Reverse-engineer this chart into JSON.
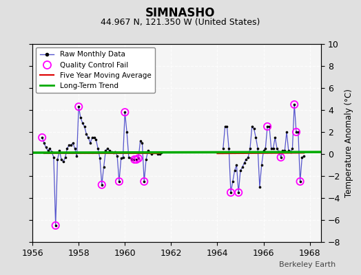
{
  "title": "SIMNASHO",
  "subtitle": "44.967 N, 121.350 W (United States)",
  "ylabel": "Temperature Anomaly (°C)",
  "credit": "Berkeley Earth",
  "xlim": [
    1956,
    1968.5
  ],
  "ylim": [
    -8,
    10
  ],
  "yticks": [
    -8,
    -6,
    -4,
    -2,
    0,
    2,
    4,
    6,
    8,
    10
  ],
  "xticks": [
    1956,
    1958,
    1960,
    1962,
    1964,
    1966,
    1968
  ],
  "bg_color": "#e0e0e0",
  "plot_bg": "#f5f5f5",
  "raw_color": "#5555cc",
  "marker_color": "#000000",
  "qc_fail_color": "#ff00ff",
  "moving_avg_color": "#dd0000",
  "trend_color": "#00aa00",
  "segment1": [
    [
      1956.417,
      1.5
    ],
    [
      1956.5,
      1.0
    ],
    [
      1956.583,
      0.6
    ],
    [
      1956.667,
      0.3
    ],
    [
      1956.75,
      0.5
    ],
    [
      1956.833,
      0.2
    ],
    [
      1956.917,
      -0.3
    ],
    [
      1957.0,
      -6.5
    ],
    [
      1957.083,
      -0.5
    ],
    [
      1957.167,
      0.3
    ],
    [
      1957.25,
      -0.5
    ],
    [
      1957.333,
      -0.7
    ],
    [
      1957.417,
      -0.3
    ],
    [
      1957.5,
      0.5
    ],
    [
      1957.583,
      0.8
    ],
    [
      1957.667,
      0.8
    ],
    [
      1957.75,
      1.0
    ],
    [
      1957.833,
      0.5
    ],
    [
      1957.917,
      -0.2
    ],
    [
      1958.0,
      4.3
    ],
    [
      1958.083,
      3.3
    ],
    [
      1958.167,
      2.8
    ],
    [
      1958.25,
      2.5
    ],
    [
      1958.333,
      1.8
    ],
    [
      1958.417,
      1.5
    ],
    [
      1958.5,
      1.0
    ],
    [
      1958.583,
      1.5
    ],
    [
      1958.667,
      1.5
    ],
    [
      1958.75,
      1.3
    ],
    [
      1958.833,
      0.5
    ],
    [
      1958.917,
      -0.4
    ],
    [
      1959.0,
      -2.8
    ],
    [
      1959.083,
      -1.2
    ],
    [
      1959.167,
      0.3
    ],
    [
      1959.25,
      0.5
    ],
    [
      1959.333,
      0.3
    ],
    [
      1959.417,
      0.2
    ],
    [
      1959.5,
      0.1
    ],
    [
      1959.583,
      0.2
    ],
    [
      1959.667,
      -0.2
    ],
    [
      1959.75,
      -2.5
    ],
    [
      1959.833,
      -0.4
    ],
    [
      1959.917,
      -0.3
    ],
    [
      1960.0,
      3.8
    ],
    [
      1960.083,
      2.0
    ],
    [
      1960.167,
      -0.3
    ],
    [
      1960.25,
      -0.4
    ],
    [
      1960.333,
      -0.5
    ],
    [
      1960.417,
      -0.5
    ],
    [
      1960.5,
      -0.5
    ],
    [
      1960.583,
      -0.4
    ],
    [
      1960.667,
      1.2
    ],
    [
      1960.75,
      1.0
    ],
    [
      1960.833,
      -2.5
    ],
    [
      1960.917,
      -0.5
    ],
    [
      1961.0,
      0.3
    ],
    [
      1961.083,
      0.1
    ],
    [
      1961.167,
      0.0
    ],
    [
      1961.25,
      0.1
    ],
    [
      1961.333,
      0.1
    ],
    [
      1961.417,
      0.0
    ],
    [
      1961.5,
      0.0
    ],
    [
      1961.583,
      0.1
    ]
  ],
  "segment2": [
    [
      1964.25,
      0.5
    ],
    [
      1964.333,
      2.5
    ],
    [
      1964.417,
      2.5
    ],
    [
      1964.5,
      0.5
    ],
    [
      1964.583,
      -3.5
    ],
    [
      1964.667,
      -2.5
    ],
    [
      1964.75,
      -1.5
    ],
    [
      1964.833,
      -1.0
    ],
    [
      1964.917,
      -3.5
    ],
    [
      1965.0,
      -1.5
    ],
    [
      1965.083,
      -1.2
    ],
    [
      1965.167,
      -0.8
    ],
    [
      1965.25,
      -0.5
    ],
    [
      1965.333,
      -0.3
    ],
    [
      1965.417,
      0.5
    ],
    [
      1965.5,
      2.5
    ],
    [
      1965.583,
      2.3
    ],
    [
      1965.667,
      1.5
    ],
    [
      1965.75,
      0.5
    ],
    [
      1965.833,
      -3.0
    ],
    [
      1965.917,
      -1.0
    ],
    [
      1966.0,
      0.3
    ],
    [
      1966.083,
      0.5
    ],
    [
      1966.167,
      2.5
    ],
    [
      1966.25,
      2.5
    ],
    [
      1966.333,
      0.5
    ],
    [
      1966.417,
      0.5
    ],
    [
      1966.5,
      1.5
    ],
    [
      1966.583,
      0.5
    ],
    [
      1966.667,
      0.2
    ],
    [
      1966.75,
      -0.3
    ],
    [
      1966.833,
      0.3
    ],
    [
      1966.917,
      0.3
    ],
    [
      1967.0,
      2.0
    ],
    [
      1967.083,
      0.3
    ],
    [
      1967.167,
      0.2
    ],
    [
      1967.25,
      0.5
    ],
    [
      1967.333,
      4.5
    ],
    [
      1967.417,
      2.0
    ],
    [
      1967.5,
      2.0
    ],
    [
      1967.583,
      -2.5
    ],
    [
      1967.667,
      -0.3
    ],
    [
      1967.75,
      -0.2
    ]
  ],
  "qc_fail_points": [
    [
      1956.417,
      1.5
    ],
    [
      1957.0,
      -6.5
    ],
    [
      1958.0,
      4.3
    ],
    [
      1959.0,
      -2.8
    ],
    [
      1959.75,
      -2.5
    ],
    [
      1960.0,
      3.8
    ],
    [
      1960.417,
      -0.5
    ],
    [
      1960.5,
      -0.5
    ],
    [
      1960.583,
      -0.4
    ],
    [
      1960.833,
      -2.5
    ],
    [
      1964.583,
      -3.5
    ],
    [
      1964.917,
      -3.5
    ],
    [
      1966.167,
      2.5
    ],
    [
      1966.75,
      -0.3
    ],
    [
      1967.333,
      4.5
    ],
    [
      1967.417,
      2.0
    ],
    [
      1967.583,
      -2.5
    ]
  ],
  "trend_x": [
    1956.0,
    1968.5
  ],
  "trend_y": [
    0.12,
    0.18
  ]
}
